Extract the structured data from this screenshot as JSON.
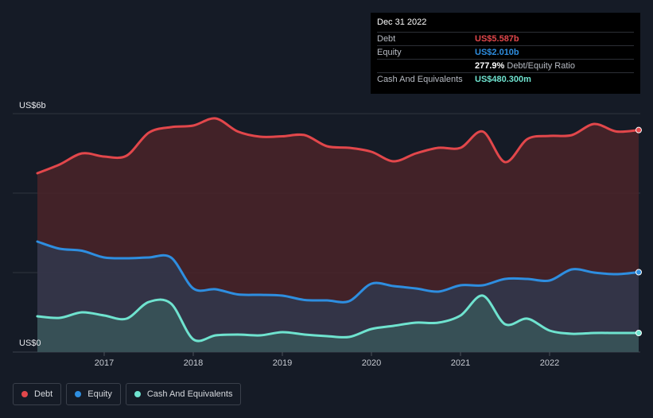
{
  "tooltip": {
    "date": "Dec 31 2022",
    "debt_label": "Debt",
    "debt_value": "US$5.587b",
    "equity_label": "Equity",
    "equity_value": "US$2.010b",
    "ratio_value": "277.9%",
    "ratio_label": "Debt/Equity Ratio",
    "cash_label": "Cash And Equivalents",
    "cash_value": "US$480.300m"
  },
  "legend": {
    "debt": "Debt",
    "equity": "Equity",
    "cash": "Cash And Equivalents"
  },
  "colors": {
    "debt": "#e2474b",
    "equity": "#2e8ee0",
    "cash": "#6fe3cf",
    "debt_fill": "#4a2329",
    "equity_fill": "#2f3b52",
    "cash_fill": "#3a5a5b"
  },
  "chart_data": {
    "type": "area",
    "title": "",
    "xlabel": "",
    "ylabel": "",
    "y_top_label": "US$6b",
    "y_bottom_label": "US$0",
    "ylim": [
      0,
      6
    ],
    "xlim": [
      2016.25,
      2023.0
    ],
    "x_ticks": [
      2017,
      2018,
      2019,
      2020,
      2021,
      2022
    ],
    "x_tick_labels": [
      "2017",
      "2018",
      "2019",
      "2020",
      "2021",
      "2022"
    ],
    "gridlines": [
      0,
      2,
      4,
      6
    ],
    "series": [
      {
        "name": "Debt",
        "key": "debt",
        "points": [
          [
            2016.25,
            4.5
          ],
          [
            2016.5,
            4.72
          ],
          [
            2016.75,
            5.0
          ],
          [
            2017.0,
            4.92
          ],
          [
            2017.25,
            4.94
          ],
          [
            2017.5,
            5.52
          ],
          [
            2017.75,
            5.66
          ],
          [
            2018.0,
            5.7
          ],
          [
            2018.25,
            5.88
          ],
          [
            2018.5,
            5.55
          ],
          [
            2018.75,
            5.42
          ],
          [
            2019.0,
            5.43
          ],
          [
            2019.25,
            5.46
          ],
          [
            2019.5,
            5.18
          ],
          [
            2019.75,
            5.14
          ],
          [
            2020.0,
            5.04
          ],
          [
            2020.25,
            4.8
          ],
          [
            2020.5,
            5.0
          ],
          [
            2020.75,
            5.14
          ],
          [
            2021.0,
            5.14
          ],
          [
            2021.25,
            5.55
          ],
          [
            2021.5,
            4.78
          ],
          [
            2021.75,
            5.36
          ],
          [
            2022.0,
            5.44
          ],
          [
            2022.25,
            5.46
          ],
          [
            2022.5,
            5.74
          ],
          [
            2022.75,
            5.55
          ],
          [
            2023.0,
            5.587
          ]
        ]
      },
      {
        "name": "Equity",
        "key": "equity",
        "points": [
          [
            2016.25,
            2.78
          ],
          [
            2016.5,
            2.6
          ],
          [
            2016.75,
            2.55
          ],
          [
            2017.0,
            2.38
          ],
          [
            2017.25,
            2.36
          ],
          [
            2017.5,
            2.38
          ],
          [
            2017.75,
            2.38
          ],
          [
            2018.0,
            1.6
          ],
          [
            2018.25,
            1.58
          ],
          [
            2018.5,
            1.45
          ],
          [
            2018.75,
            1.44
          ],
          [
            2019.0,
            1.42
          ],
          [
            2019.25,
            1.31
          ],
          [
            2019.5,
            1.3
          ],
          [
            2019.75,
            1.28
          ],
          [
            2020.0,
            1.72
          ],
          [
            2020.25,
            1.66
          ],
          [
            2020.5,
            1.6
          ],
          [
            2020.75,
            1.52
          ],
          [
            2021.0,
            1.68
          ],
          [
            2021.25,
            1.68
          ],
          [
            2021.5,
            1.84
          ],
          [
            2021.75,
            1.84
          ],
          [
            2022.0,
            1.8
          ],
          [
            2022.25,
            2.08
          ],
          [
            2022.5,
            2.0
          ],
          [
            2022.75,
            1.96
          ],
          [
            2023.0,
            2.01
          ]
        ]
      },
      {
        "name": "Cash And Equivalents",
        "key": "cash",
        "points": [
          [
            2016.25,
            0.9
          ],
          [
            2016.5,
            0.86
          ],
          [
            2016.75,
            1.0
          ],
          [
            2017.0,
            0.92
          ],
          [
            2017.25,
            0.84
          ],
          [
            2017.5,
            1.26
          ],
          [
            2017.75,
            1.22
          ],
          [
            2018.0,
            0.32
          ],
          [
            2018.25,
            0.42
          ],
          [
            2018.5,
            0.44
          ],
          [
            2018.75,
            0.42
          ],
          [
            2019.0,
            0.5
          ],
          [
            2019.25,
            0.44
          ],
          [
            2019.5,
            0.4
          ],
          [
            2019.75,
            0.38
          ],
          [
            2020.0,
            0.58
          ],
          [
            2020.25,
            0.66
          ],
          [
            2020.5,
            0.74
          ],
          [
            2020.75,
            0.74
          ],
          [
            2021.0,
            0.92
          ],
          [
            2021.25,
            1.42
          ],
          [
            2021.5,
            0.7
          ],
          [
            2021.75,
            0.84
          ],
          [
            2022.0,
            0.54
          ],
          [
            2022.25,
            0.46
          ],
          [
            2022.5,
            0.48
          ],
          [
            2022.75,
            0.48
          ],
          [
            2023.0,
            0.4803
          ]
        ]
      }
    ]
  }
}
